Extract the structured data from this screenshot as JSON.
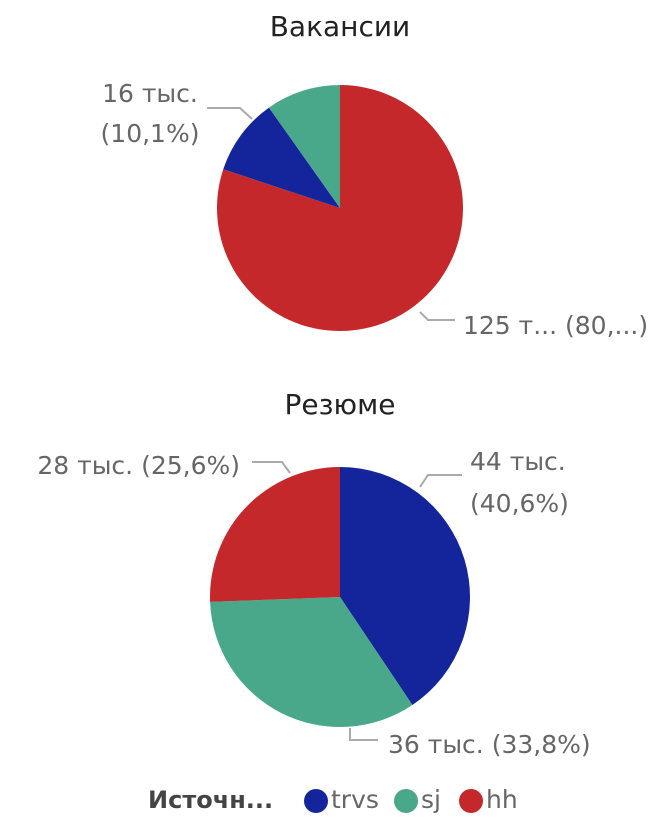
{
  "chart_data": [
    {
      "type": "pie",
      "title": "Вакансии",
      "categories": [
        "hh",
        "trvs",
        "sj"
      ],
      "values": [
        80.1,
        10.1,
        9.8
      ],
      "value_labels": [
        [
          "125 т... (80,...)"
        ],
        [
          "16 тыс.",
          "(10,1%)"
        ],
        null
      ],
      "colors": [
        "#c4282a",
        "#14259c",
        "#4aa88a"
      ]
    },
    {
      "type": "pie",
      "title": "Резюме",
      "categories": [
        "trvs",
        "sj",
        "hh"
      ],
      "values": [
        40.6,
        33.8,
        25.6
      ],
      "value_labels": [
        [
          "44 тыс.",
          "(40,6%)"
        ],
        [
          "36 тыс. (33,8%)"
        ],
        [
          "28 тыс. (25,6%)"
        ]
      ],
      "colors": [
        "#14259c",
        "#4aa88a",
        "#c4282a"
      ]
    }
  ],
  "legend": {
    "title": "Источн...",
    "items": [
      "trvs",
      "sj",
      "hh"
    ],
    "colors": [
      "#14259c",
      "#4aa88a",
      "#c4282a"
    ]
  }
}
